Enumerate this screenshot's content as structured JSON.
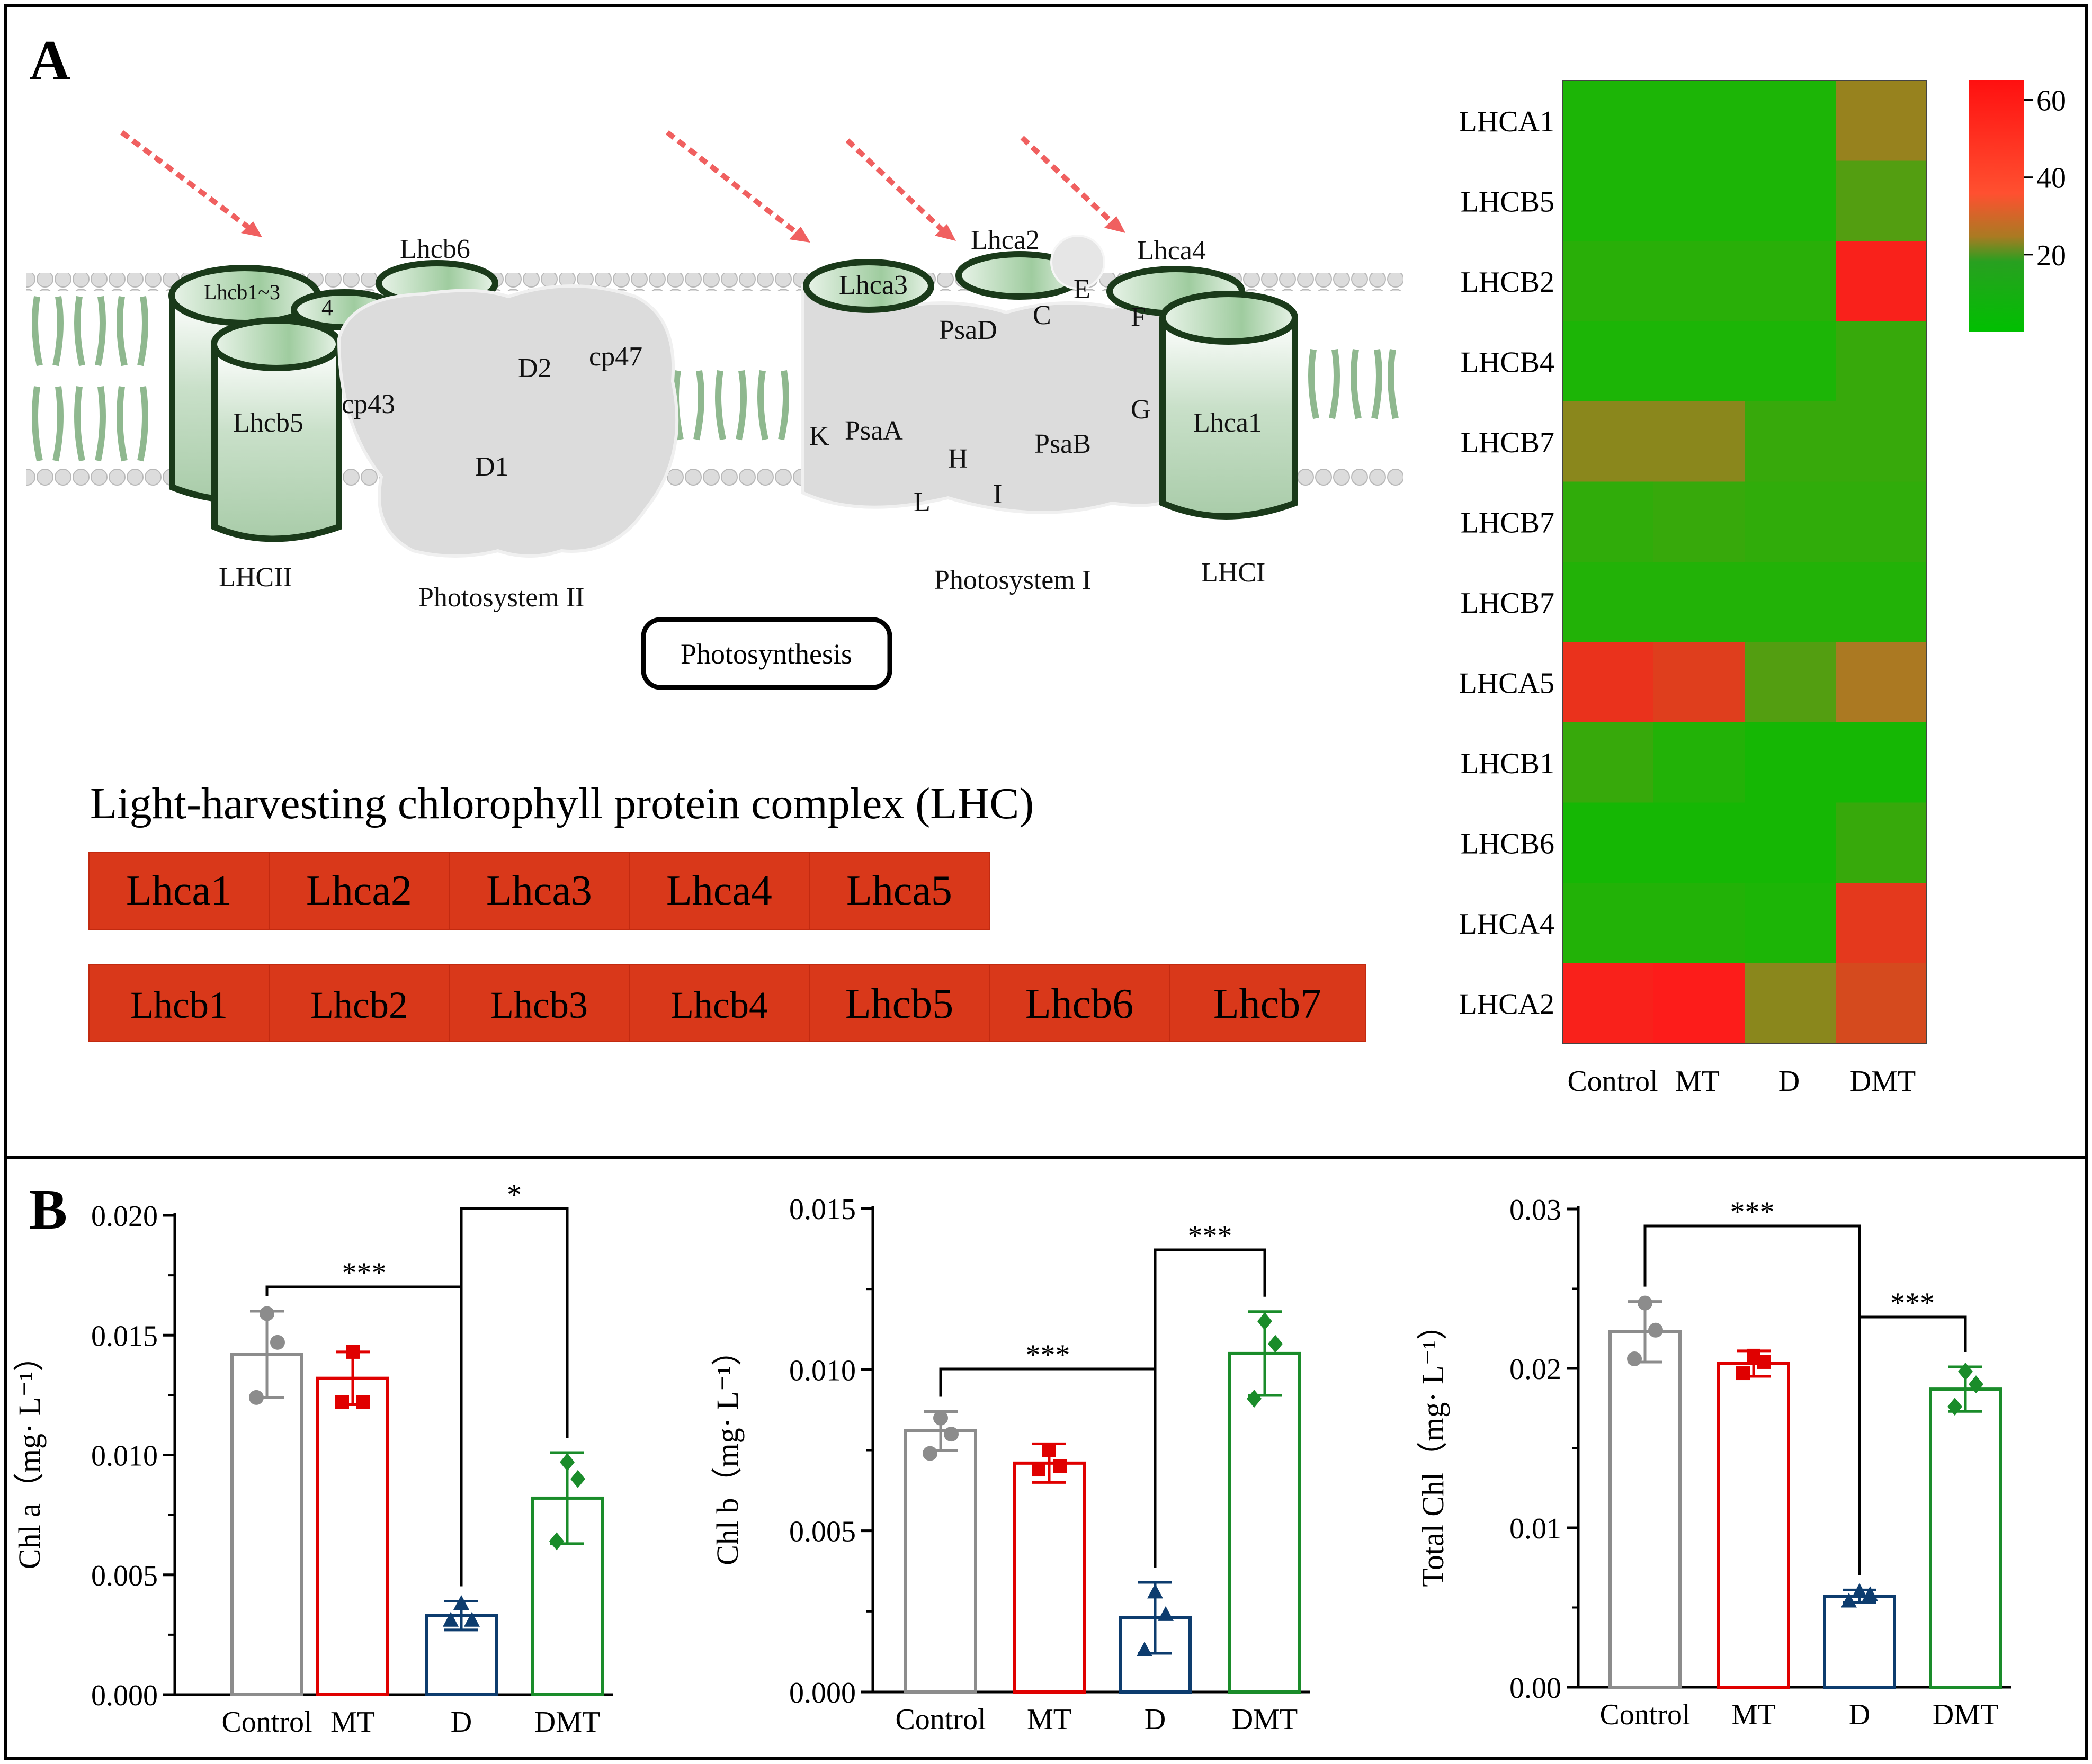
{
  "panel_a": {
    "letter": "A",
    "diagram": {
      "labels": {
        "lhcb6": "Lhcb6",
        "lhcb1_3": "Lhcb1~3",
        "four": "4",
        "lhcb5": "Lhcb5",
        "cp43": "cp43",
        "d2": "D2",
        "cp47": "cp47",
        "d1": "D1",
        "lhcii": "LHCII",
        "ps2": "Photosystem II",
        "lhca3": "Lhca3",
        "lhca2": "Lhca2",
        "lhca4": "Lhca4",
        "e": "E",
        "c": "C",
        "f": "F",
        "psad": "PsaD",
        "k": "K",
        "psaa": "PsaA",
        "h": "H",
        "psab": "PsaB",
        "g": "G",
        "lhca1": "Lhca1",
        "l": "L",
        "i": "I",
        "ps1": "Photosystem I",
        "lhci": "LHCI"
      },
      "center_box": "Photosynthesis"
    },
    "lhc_title": "Light-harvesting chlorophyll protein complex (LHC)",
    "lhca_row": [
      "Lhca1",
      "Lhca2",
      "Lhca3",
      "Lhca4",
      "Lhca5"
    ],
    "lhcb_row": [
      "Lhcb1",
      "Lhcb2",
      "Lhcb3",
      "Lhcb4",
      "Lhcb5",
      "Lhcb6",
      "Lhcb7"
    ],
    "colors": {
      "gene_box": "#d9381a",
      "heat_low": "#00c000",
      "heat_mid": "#aa7a22",
      "heat_high": "#ff1a1a",
      "arrow": "#f06060",
      "membrane_green": "#8fb88f"
    }
  },
  "panel_b": {
    "letter": "B"
  },
  "chart_data": [
    {
      "type": "heatmap",
      "rows": [
        "LHCA1",
        "LHCB5",
        "LHCB2",
        "LHCB4",
        "LHCB7",
        "LHCB7",
        "LHCB7",
        "LHCA5",
        "LHCB1",
        "LHCB6",
        "LHCA4",
        "LHCA2"
      ],
      "columns": [
        "Control",
        "MT",
        "D",
        "DMT"
      ],
      "values": [
        [
          4,
          4,
          4,
          22
        ],
        [
          4,
          4,
          4,
          12
        ],
        [
          6,
          6,
          6,
          62
        ],
        [
          4,
          4,
          4,
          8
        ],
        [
          20,
          20,
          8,
          8
        ],
        [
          7,
          8,
          7,
          7
        ],
        [
          5,
          5,
          5,
          5
        ],
        [
          55,
          50,
          12,
          25
        ],
        [
          8,
          5,
          3,
          3
        ],
        [
          3,
          3,
          3,
          8
        ],
        [
          5,
          5,
          4,
          52
        ],
        [
          62,
          64,
          20,
          45
        ]
      ],
      "colorbar": {
        "min": 0,
        "max": 65,
        "ticks": [
          20,
          40,
          60
        ]
      }
    },
    {
      "type": "bar",
      "categories": [
        "Control",
        "MT",
        "D",
        "DMT"
      ],
      "values": [
        0.0142,
        0.0132,
        0.0033,
        0.0082
      ],
      "errors": [
        0.0018,
        0.0011,
        0.0006,
        0.0019
      ],
      "points": [
        [
          0.0159,
          0.0147,
          0.0124
        ],
        [
          0.0143,
          0.0122,
          0.0122
        ],
        [
          0.0038,
          0.0031,
          0.0031
        ],
        [
          0.0097,
          0.009,
          0.0064
        ]
      ],
      "markers": [
        "circle",
        "square",
        "triangle",
        "diamond"
      ],
      "series_colors": [
        "#8c8c8c",
        "#e00000",
        "#0d3c6e",
        "#1a8c2a"
      ],
      "ylabel": "Chl a（mg· L⁻¹）",
      "ylim": [
        0,
        0.02
      ],
      "yticks": [
        "0.000",
        "0.005",
        "0.010",
        "0.015",
        "0.020"
      ],
      "significance": [
        {
          "from": 0,
          "to": 2,
          "label": "***"
        },
        {
          "from": 2,
          "to": 3,
          "label": "*"
        }
      ]
    },
    {
      "type": "bar",
      "categories": [
        "Control",
        "MT",
        "D",
        "DMT"
      ],
      "values": [
        0.0081,
        0.0071,
        0.0023,
        0.0105
      ],
      "errors": [
        0.0006,
        0.0006,
        0.0011,
        0.0013
      ],
      "points": [
        [
          0.0085,
          0.008,
          0.0074
        ],
        [
          0.0075,
          0.007,
          0.0069
        ],
        [
          0.0031,
          0.0024,
          0.0013
        ],
        [
          0.0115,
          0.0108,
          0.0091
        ]
      ],
      "markers": [
        "circle",
        "square",
        "triangle",
        "diamond"
      ],
      "series_colors": [
        "#8c8c8c",
        "#e00000",
        "#0d3c6e",
        "#1a8c2a"
      ],
      "ylabel": "Chl b（mg· L⁻¹）",
      "ylim": [
        0,
        0.015
      ],
      "yticks": [
        "0.000",
        "0.005",
        "0.010",
        "0.015"
      ],
      "significance": [
        {
          "from": 0,
          "to": 2,
          "label": "***"
        },
        {
          "from": 2,
          "to": 3,
          "label": "***"
        }
      ]
    },
    {
      "type": "bar",
      "categories": [
        "Control",
        "MT",
        "D",
        "DMT"
      ],
      "values": [
        0.0223,
        0.0203,
        0.0057,
        0.0187
      ],
      "errors": [
        0.0019,
        0.0008,
        0.0004,
        0.0014
      ],
      "points": [
        [
          0.0241,
          0.0224,
          0.0206
        ],
        [
          0.0208,
          0.0204,
          0.0197
        ],
        [
          0.006,
          0.0058,
          0.0054
        ],
        [
          0.0198,
          0.019,
          0.0176
        ]
      ],
      "markers": [
        "circle",
        "square",
        "triangle",
        "diamond"
      ],
      "series_colors": [
        "#8c8c8c",
        "#e00000",
        "#0d3c6e",
        "#1a8c2a"
      ],
      "ylabel": "Total Chl（mg· L⁻¹）",
      "ylim": [
        0,
        0.03
      ],
      "yticks": [
        "0.00",
        "0.01",
        "0.02",
        "0.03"
      ],
      "significance": [
        {
          "from": 0,
          "to": 2,
          "label": "***"
        },
        {
          "from": 2,
          "to": 3,
          "label": "***"
        }
      ]
    }
  ]
}
